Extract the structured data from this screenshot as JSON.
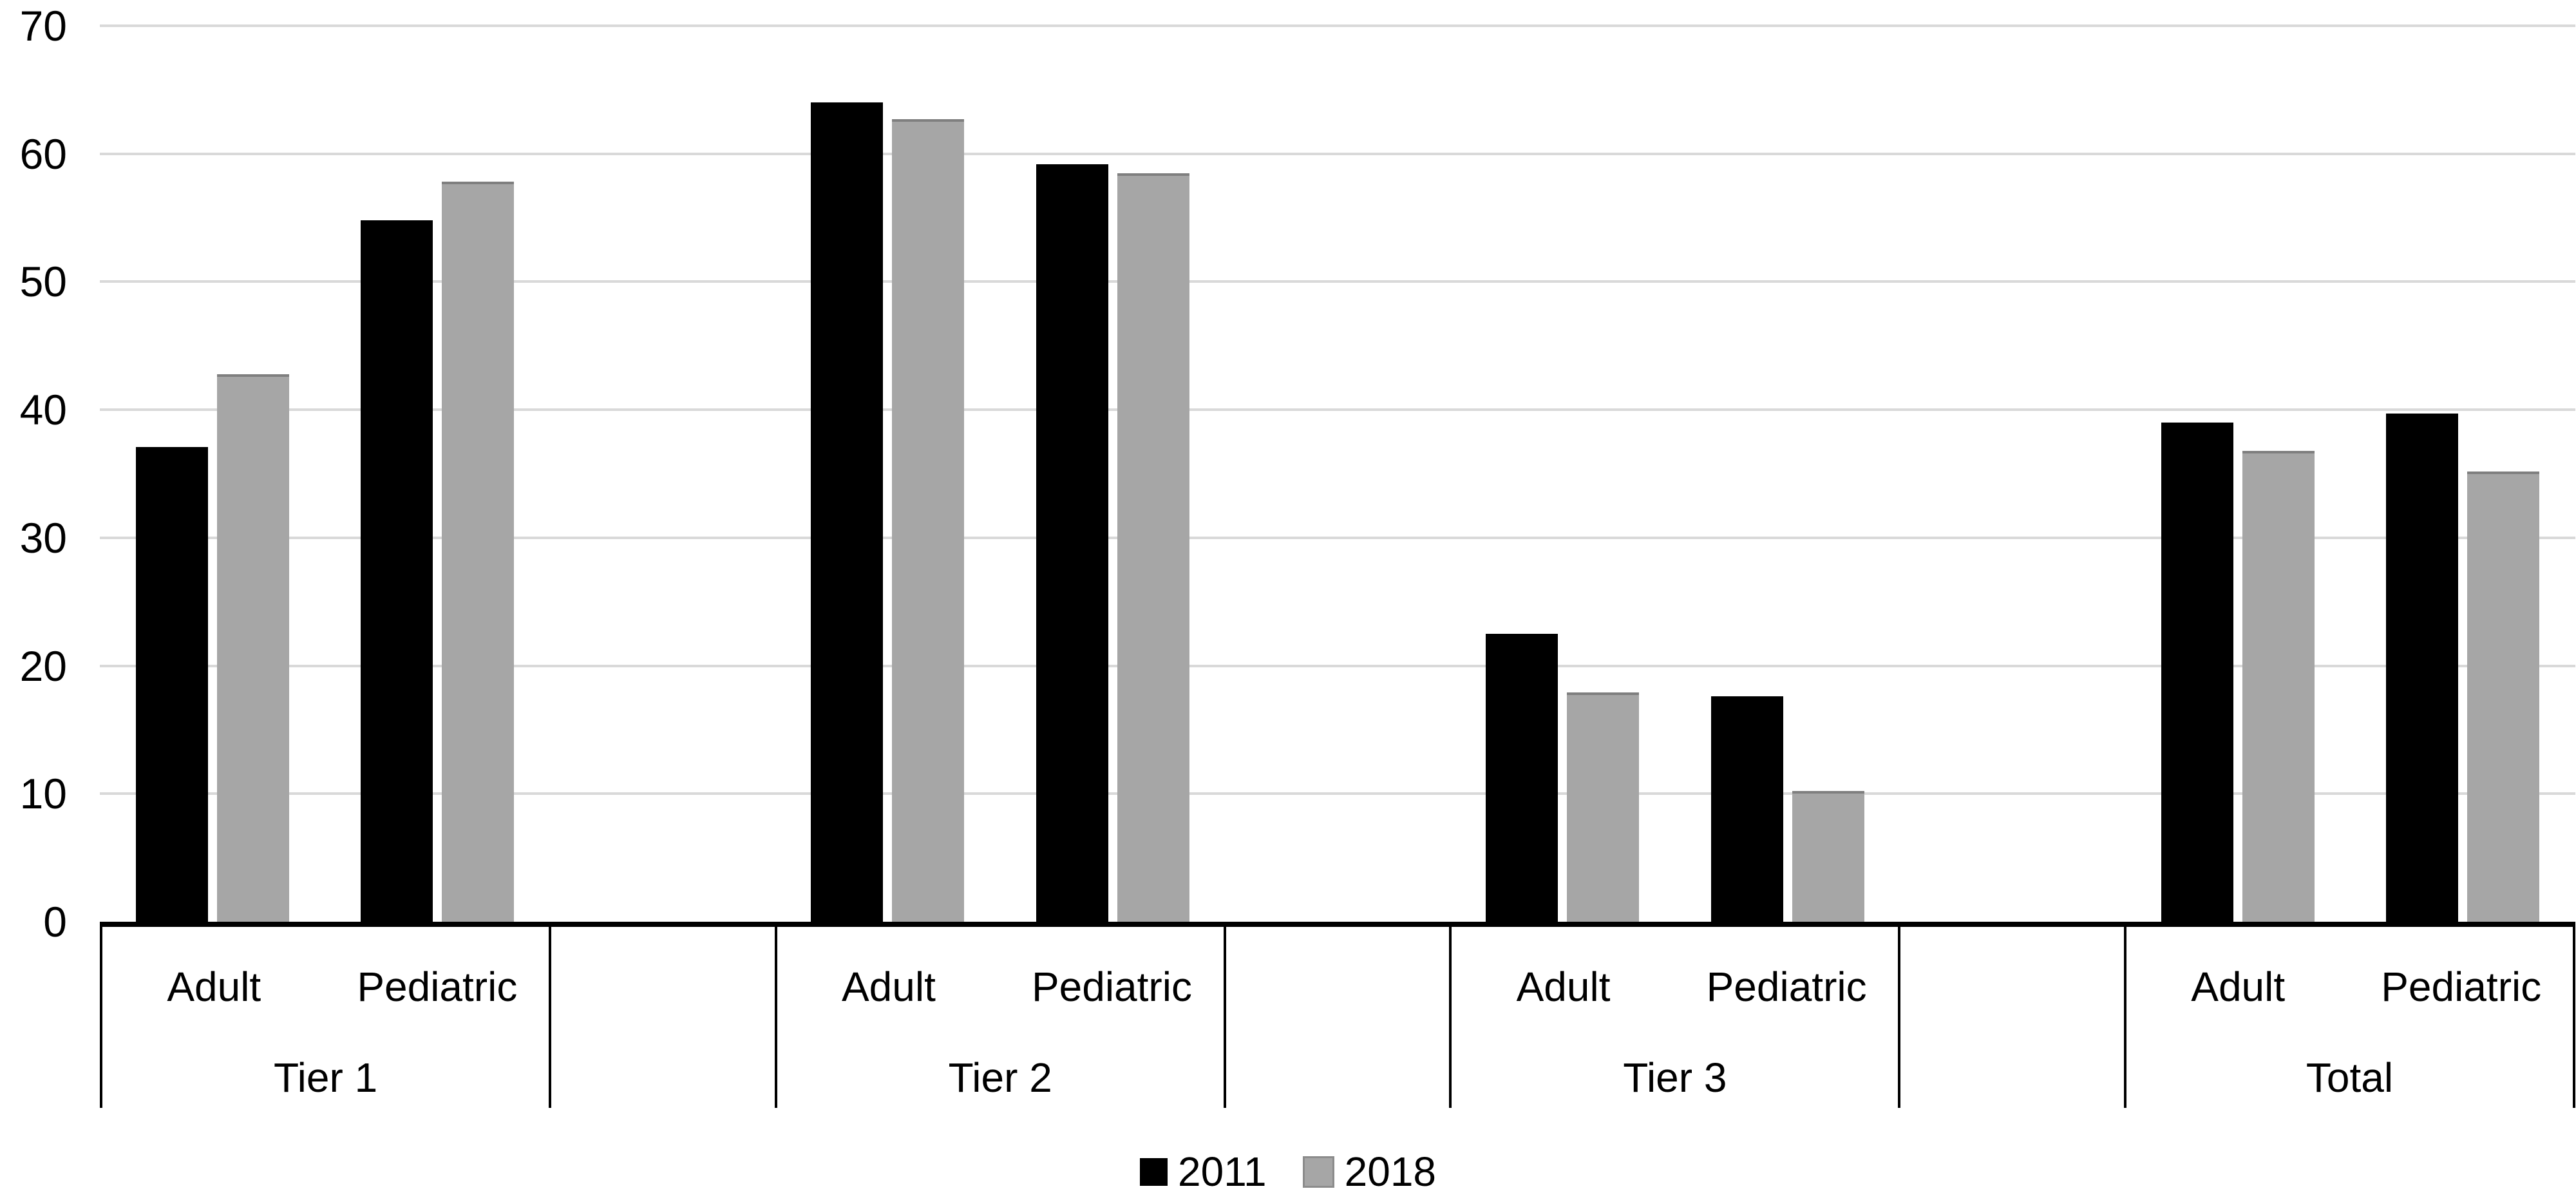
{
  "page": {
    "background": "#ffffff"
  },
  "chart_data": {
    "type": "bar",
    "title": "",
    "xlabel": "",
    "ylabel": "",
    "ylim": [
      0,
      70
    ],
    "yticks": [
      0,
      10,
      20,
      30,
      40,
      50,
      60,
      70
    ],
    "grid": true,
    "gridline_color": "#d9d9d9",
    "axis_color": "#000000",
    "legend_position": "bottom",
    "series": [
      {
        "name": "2011",
        "color": "#000000"
      },
      {
        "name": "2018",
        "color": "#a6a6a6"
      }
    ],
    "groups": [
      {
        "label": "Tier 1",
        "categories": [
          {
            "label": "Adult",
            "values": [
              37.1,
              42.8
            ]
          },
          {
            "label": "Pediatric",
            "values": [
              54.8,
              57.8
            ]
          }
        ]
      },
      {
        "label": "Tier 2",
        "categories": [
          {
            "label": "Adult",
            "values": [
              64.0,
              62.7
            ]
          },
          {
            "label": "Pediatric",
            "values": [
              59.2,
              58.5
            ]
          }
        ]
      },
      {
        "label": "Tier 3",
        "categories": [
          {
            "label": "Adult",
            "values": [
              22.5,
              17.9
            ]
          },
          {
            "label": "Pediatric",
            "values": [
              17.6,
              10.2
            ]
          }
        ]
      },
      {
        "label": "Total",
        "categories": [
          {
            "label": "Adult",
            "values": [
              39.0,
              36.8
            ]
          },
          {
            "label": "Pediatric",
            "values": [
              39.7,
              35.2
            ]
          }
        ]
      }
    ]
  }
}
